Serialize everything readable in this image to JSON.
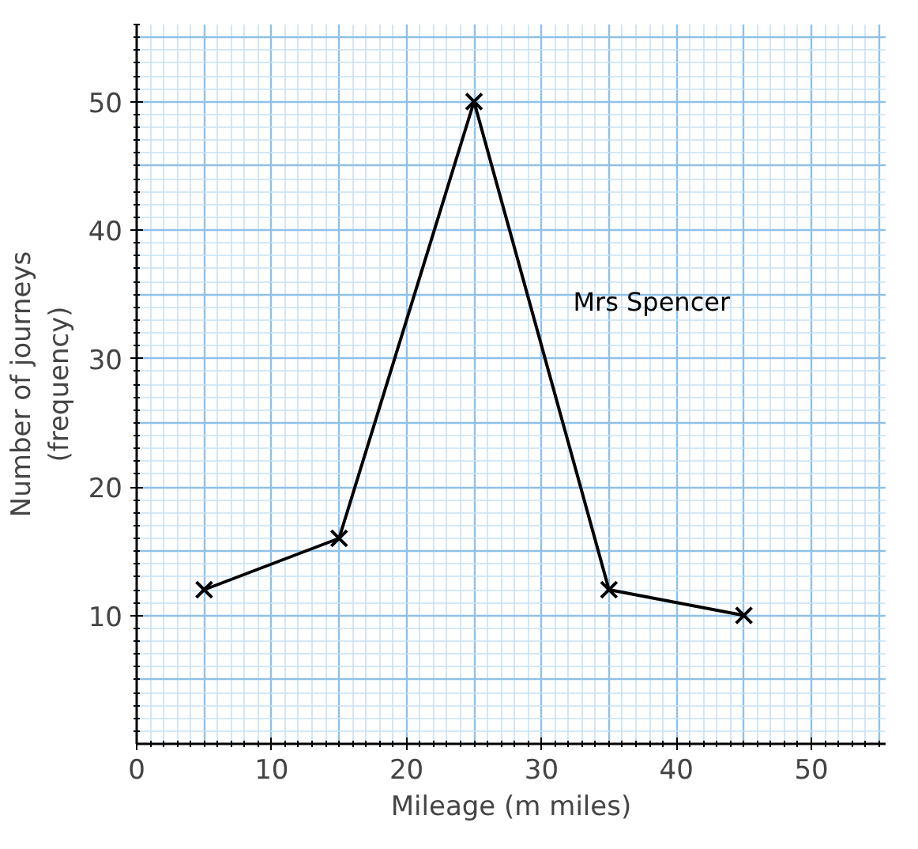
{
  "chart_data": {
    "type": "line",
    "xlabel": "Mileage (m miles)",
    "ylabel": "Number of journeys\n(frequency)",
    "x": [
      5,
      15,
      25,
      35,
      45
    ],
    "series": [
      {
        "name": "Mrs Spencer",
        "color": "#000000",
        "values": [
          12,
          16,
          50,
          12,
          10
        ]
      }
    ],
    "xlim": [
      0,
      55.5
    ],
    "ylim": [
      0,
      56
    ],
    "xticks": [
      0,
      10,
      20,
      30,
      40,
      50
    ],
    "yticks": [
      10,
      20,
      30,
      40,
      50
    ],
    "grid": true,
    "marker": "cross",
    "line_style": "solid"
  }
}
